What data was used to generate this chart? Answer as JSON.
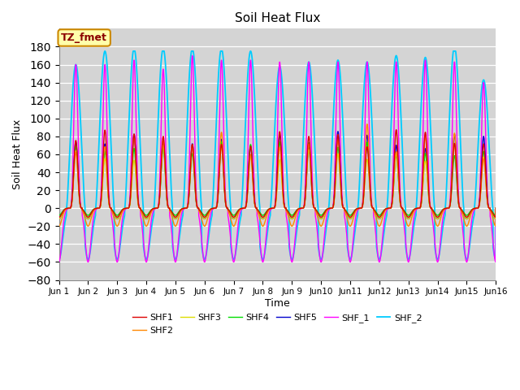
{
  "title": "Soil Heat Flux",
  "ylabel": "Soil Heat Flux",
  "xlabel": "Time",
  "annotation": "TZ_fmet",
  "yticks": [
    -80,
    -60,
    -40,
    -20,
    0,
    20,
    40,
    60,
    80,
    100,
    120,
    140,
    160,
    180
  ],
  "series_colors": {
    "SHF1": "#dd0000",
    "SHF2": "#ff8800",
    "SHF3": "#dddd00",
    "SHF4": "#00dd00",
    "SHF5": "#0000cc",
    "SHF_1": "#ff00ff",
    "SHF_2": "#00ccff"
  },
  "days": 15,
  "background_color": "#d4d4d4"
}
